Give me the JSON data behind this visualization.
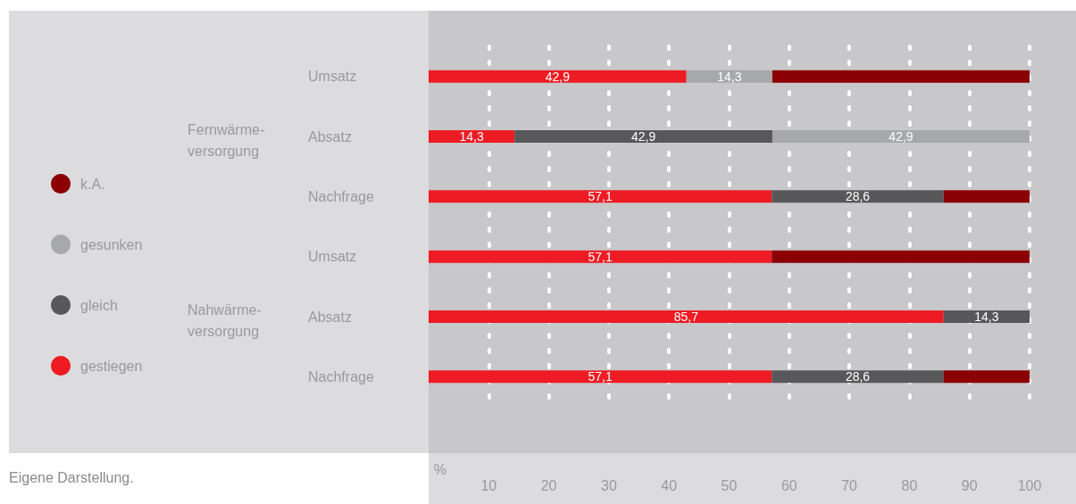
{
  "chart_data": {
    "type": "bar",
    "orientation": "horizontal",
    "stacked": true,
    "categories": [
      "Umsatz",
      "Absatz",
      "Nachfrage",
      "Umsatz",
      "Absatz",
      "Nachfrage"
    ],
    "series": [
      {
        "name": "gestiegen",
        "color": "#ed1c24",
        "values": [
          42.9,
          14.3,
          57.1,
          57.1,
          85.7,
          57.1
        ],
        "value_labels": [
          "42,9",
          "14,3",
          "57,1",
          "57,1",
          "85,7",
          "57,1"
        ]
      },
      {
        "name": "gleich",
        "color": "#58585a",
        "values": [
          0,
          42.9,
          28.6,
          0,
          14.3,
          28.6
        ],
        "value_labels": [
          null,
          "42,9",
          "28,6",
          null,
          "14,3",
          "28,6"
        ]
      },
      {
        "name": "gesunken",
        "color": "#a7a8aa",
        "values": [
          14.3,
          42.9,
          0,
          0,
          0,
          0
        ],
        "value_labels": [
          "14,3",
          "42,9",
          null,
          null,
          null,
          null
        ]
      },
      {
        "name": "k.A.",
        "color": "#8a0005",
        "values": [
          42.9,
          0,
          14.3,
          42.9,
          0,
          14.3
        ]
      }
    ],
    "xlabel": "%",
    "xlim": [
      0,
      100
    ],
    "xticks": [
      10,
      20,
      30,
      40,
      50,
      60,
      70,
      80,
      90,
      100
    ],
    "grid": "x",
    "legend": "left",
    "annotations": [
      "Fernwärme-\nversorgung",
      "Nahwärme-\nversorgung",
      "Eigene Darstellung."
    ]
  }
}
